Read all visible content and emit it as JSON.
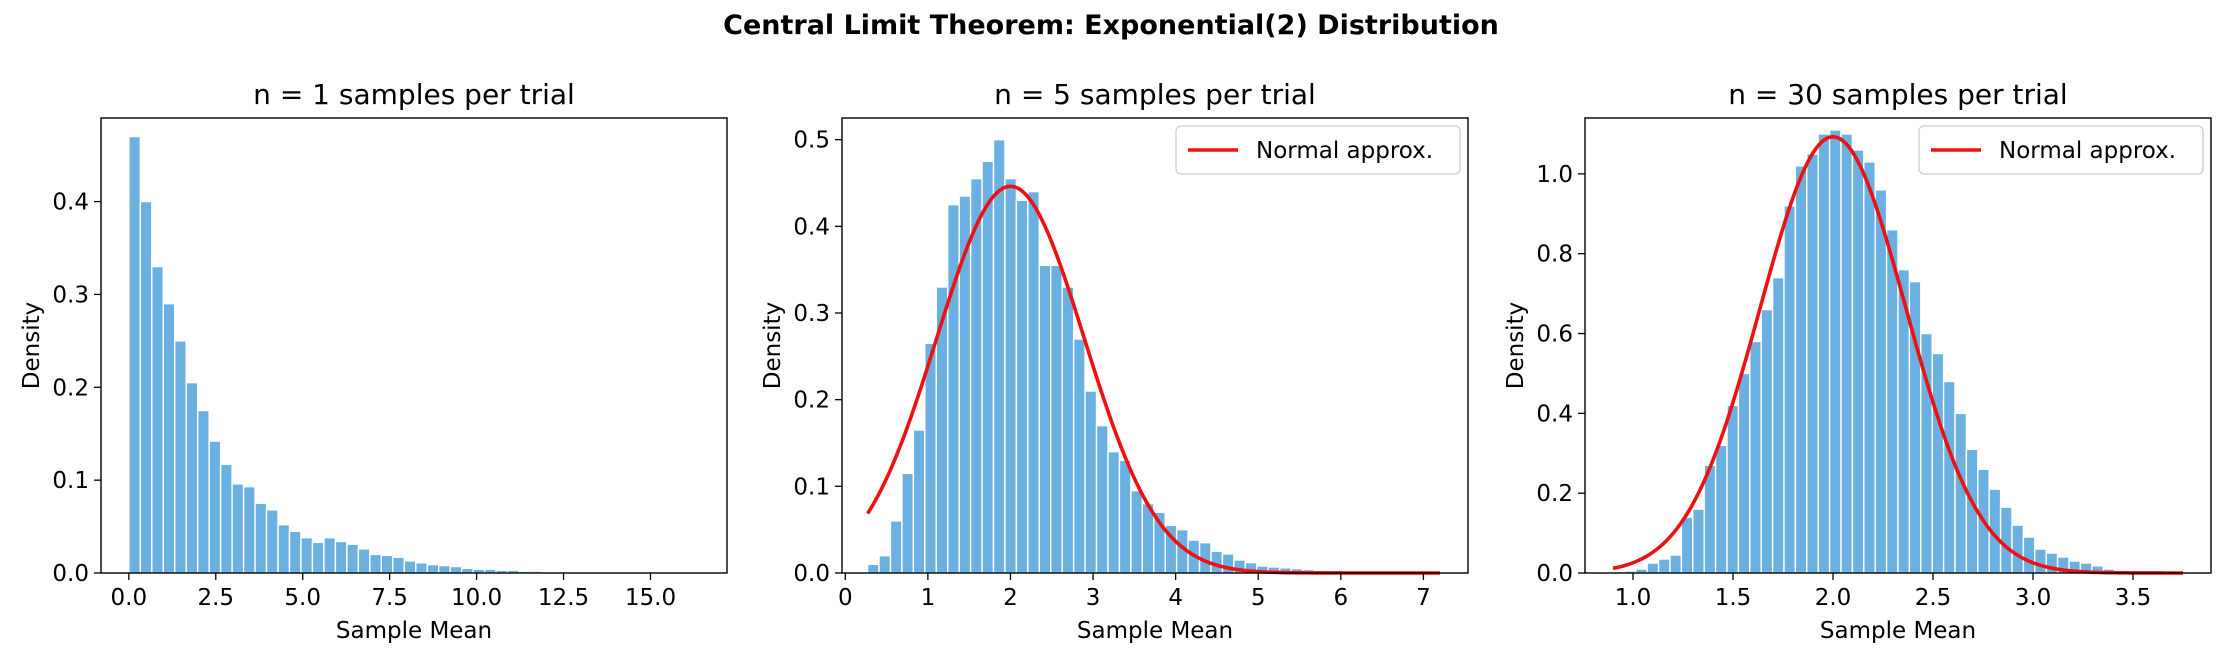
{
  "figure": {
    "suptitle": "Central Limit Theorem: Exponential(2) Distribution"
  },
  "colors": {
    "bar_fill": "#6ab0e0",
    "bar_edge": "#ffffff",
    "curve": "#ee1111",
    "axis": "#000000"
  },
  "chart_data": [
    {
      "type": "bar",
      "title": "n = 1 samples per trial",
      "xlabel": "Sample Mean",
      "ylabel": "Density",
      "xlim": [
        -0.8,
        17.2
      ],
      "ylim": [
        0,
        0.49
      ],
      "xticks": [
        0.0,
        2.5,
        5.0,
        7.5,
        10.0,
        12.5,
        15.0
      ],
      "xtick_labels": [
        "0.0",
        "2.5",
        "5.0",
        "7.5",
        "10.0",
        "12.5",
        "15.0"
      ],
      "yticks": [
        0.0,
        0.1,
        0.2,
        0.3,
        0.4
      ],
      "ytick_labels": [
        "0.0",
        "0.1",
        "0.2",
        "0.3",
        "0.4"
      ],
      "legend": null,
      "histogram": {
        "bin_start": 0.0,
        "bin_width": 0.33,
        "values": [
          0.47,
          0.4,
          0.33,
          0.29,
          0.25,
          0.205,
          0.175,
          0.142,
          0.117,
          0.096,
          0.093,
          0.075,
          0.068,
          0.052,
          0.045,
          0.038,
          0.033,
          0.038,
          0.034,
          0.031,
          0.026,
          0.02,
          0.019,
          0.017,
          0.013,
          0.011,
          0.009,
          0.008,
          0.007,
          0.005,
          0.004,
          0.004,
          0.003,
          0.003,
          0.002,
          0.002,
          0.001,
          0.001,
          0.001,
          0.001,
          0.0008,
          0.0006,
          0.0005,
          0.0004,
          0.0003,
          0.0003,
          0.0002,
          0.0002,
          0.0001,
          0.0001
        ]
      }
    },
    {
      "type": "bar",
      "title": "n = 5 samples per trial",
      "xlabel": "Sample Mean",
      "ylabel": "Density",
      "xlim": [
        -0.04,
        7.54
      ],
      "ylim": [
        0,
        0.525
      ],
      "xticks": [
        0,
        1,
        2,
        3,
        4,
        5,
        6,
        7
      ],
      "xtick_labels": [
        "0",
        "1",
        "2",
        "3",
        "4",
        "5",
        "6",
        "7"
      ],
      "yticks": [
        0.0,
        0.1,
        0.2,
        0.3,
        0.4,
        0.5
      ],
      "ytick_labels": [
        "0.0",
        "0.1",
        "0.2",
        "0.3",
        "0.4",
        "0.5"
      ],
      "legend": {
        "label": "Normal approx.",
        "position": "upper right"
      },
      "histogram": {
        "bin_start": 0.27,
        "bin_width": 0.1386,
        "values": [
          0.01,
          0.02,
          0.06,
          0.115,
          0.165,
          0.265,
          0.33,
          0.425,
          0.435,
          0.455,
          0.475,
          0.5,
          0.455,
          0.43,
          0.44,
          0.355,
          0.355,
          0.33,
          0.27,
          0.21,
          0.17,
          0.14,
          0.13,
          0.095,
          0.08,
          0.07,
          0.055,
          0.05,
          0.038,
          0.035,
          0.025,
          0.022,
          0.015,
          0.012,
          0.008,
          0.007,
          0.006,
          0.005,
          0.004,
          0.003,
          0.002,
          0.002,
          0.0015,
          0.001,
          0.001,
          0.0008,
          0.0005,
          0.0004,
          0.0003,
          0.0002
        ]
      },
      "curve": {
        "label": "Normal approx.",
        "mean": 2.0,
        "sd": 0.894,
        "x_range": [
          0.27,
          7.2
        ]
      }
    },
    {
      "type": "bar",
      "title": "n = 30 samples per trial",
      "xlabel": "Sample Mean",
      "ylabel": "Density",
      "xlim": [
        0.76,
        3.89
      ],
      "ylim": [
        0,
        1.14
      ],
      "xticks": [
        1.0,
        1.5,
        2.0,
        2.5,
        3.0,
        3.5
      ],
      "xtick_labels": [
        "1.0",
        "1.5",
        "2.0",
        "2.5",
        "3.0",
        "3.5"
      ],
      "yticks": [
        0.0,
        0.2,
        0.4,
        0.6,
        0.8,
        1.0
      ],
      "ytick_labels": [
        "0.0",
        "0.2",
        "0.4",
        "0.6",
        "0.8",
        "1.0"
      ],
      "legend": {
        "label": "Normal approx.",
        "position": "upper right"
      },
      "histogram": {
        "bin_start": 0.9,
        "bin_width": 0.057,
        "values": [
          0.002,
          0.005,
          0.01,
          0.025,
          0.035,
          0.045,
          0.14,
          0.16,
          0.27,
          0.32,
          0.42,
          0.5,
          0.58,
          0.66,
          0.74,
          0.92,
          1.02,
          1.05,
          1.1,
          1.11,
          1.1,
          1.06,
          1.03,
          0.96,
          0.86,
          0.76,
          0.73,
          0.6,
          0.55,
          0.48,
          0.4,
          0.31,
          0.26,
          0.21,
          0.165,
          0.12,
          0.09,
          0.06,
          0.05,
          0.04,
          0.03,
          0.025,
          0.018,
          0.01,
          0.006,
          0.004,
          0.003,
          0.002,
          0.001,
          0.001
        ]
      },
      "curve": {
        "label": "Normal approx.",
        "mean": 2.0,
        "sd": 0.365,
        "x_range": [
          0.9,
          3.75
        ]
      }
    }
  ]
}
